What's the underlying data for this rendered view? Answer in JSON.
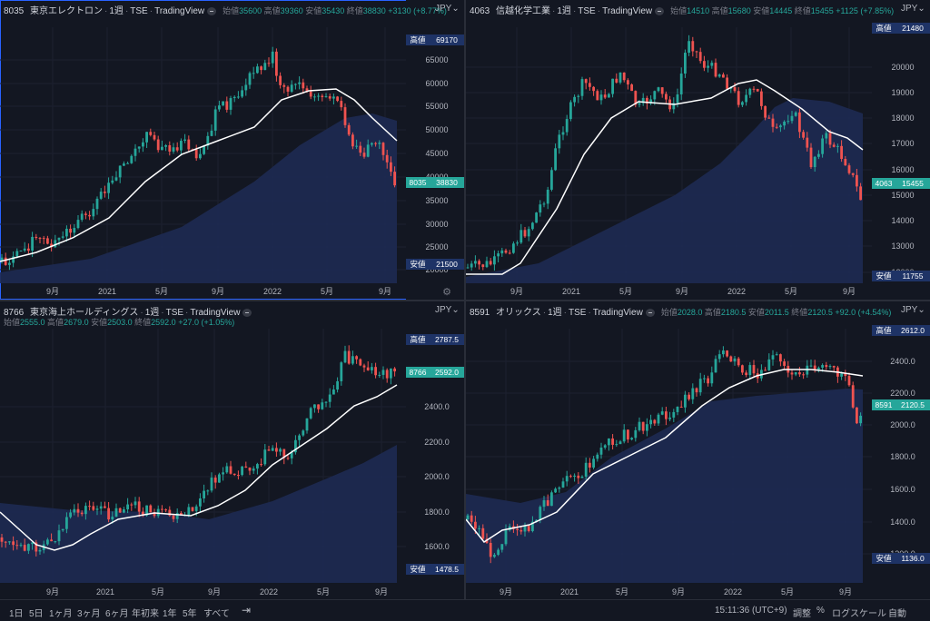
{
  "colors": {
    "up": "#26a69a",
    "down": "#ef5350",
    "ma": "#ffffff",
    "area": "#1e2a52",
    "bg": "#131722",
    "label_blue": "#1e3366",
    "label_green": "#26a69a"
  },
  "panes": [
    {
      "code": "8035",
      "name": "東京エレクトロン",
      "interval": "1週",
      "exchange": "TSE",
      "source": "TradingView",
      "ohlc": {
        "open_label": "始値",
        "open": "35600",
        "high_label": "高値",
        "high": "39360",
        "low_label": "安値",
        "low": "35430",
        "close_label": "終値",
        "close": "38830",
        "change": "+3130 (+8.77%)"
      },
      "currency": "JPY",
      "price_ticks": [
        "65000",
        "60000",
        "55000",
        "50000",
        "45000",
        "40000",
        "35000",
        "30000",
        "25000",
        "20000"
      ],
      "high_tag": {
        "label": "高値",
        "value": "69170"
      },
      "last_tag": {
        "label": "8035",
        "value": "38830"
      },
      "low_tag": {
        "label": "安値",
        "value": "21500"
      },
      "time_ticks": [
        "9月",
        "2021",
        "5月",
        "9月",
        "2022",
        "5月",
        "9月"
      ],
      "settings_icon": "gear-icon"
    },
    {
      "code": "4063",
      "name": "信越化学工業",
      "interval": "1週",
      "exchange": "TSE",
      "source": "TradingView",
      "ohlc": {
        "open_label": "始値",
        "open": "14510",
        "high_label": "高値",
        "high": "15680",
        "low_label": "安値",
        "low": "14445",
        "close_label": "終値",
        "close": "15455",
        "change": "+1125 (+7.85%)"
      },
      "currency": "JPY",
      "price_ticks": [
        "20000",
        "19000",
        "18000",
        "17000",
        "16000",
        "15000",
        "14000",
        "13000",
        "12000"
      ],
      "high_tag": {
        "label": "高値",
        "value": "21480"
      },
      "last_tag": {
        "label": "4063",
        "value": "15455"
      },
      "low_tag": {
        "label": "安値",
        "value": "11755"
      },
      "time_ticks": [
        "9月",
        "2021",
        "5月",
        "9月",
        "2022",
        "5月",
        "9月"
      ]
    },
    {
      "code": "8766",
      "name": "東京海上ホールディングス",
      "interval": "1週",
      "exchange": "TSE",
      "source": "TradingView",
      "ohlc": {
        "open_label": "始値",
        "open": "2555.0",
        "high_label": "高値",
        "high": "2679.0",
        "low_label": "安値",
        "low": "2503.0",
        "close_label": "終値",
        "close": "2592.0",
        "change": "+27.0 (+1.05%)"
      },
      "currency": "JPY",
      "price_ticks": [
        "2400.0",
        "2200.0",
        "2000.0",
        "1800.0",
        "1600.0"
      ],
      "high_tag": {
        "label": "高値",
        "value": "2787.5"
      },
      "last_tag": {
        "label": "8766",
        "value": "2592.0"
      },
      "low_tag": {
        "label": "安値",
        "value": "1478.5"
      },
      "time_ticks": [
        "9月",
        "2021",
        "5月",
        "9月",
        "2022",
        "5月",
        "9月"
      ]
    },
    {
      "code": "8591",
      "name": "オリックス",
      "interval": "1週",
      "exchange": "TSE",
      "source": "TradingView",
      "ohlc": {
        "open_label": "始値",
        "open": "2028.0",
        "high_label": "高値",
        "high": "2180.5",
        "low_label": "安値",
        "low": "2011.5",
        "close_label": "終値",
        "close": "2120.5",
        "change": "+92.0 (+4.54%)"
      },
      "currency": "JPY",
      "price_ticks": [
        "2400.0",
        "2200.0",
        "2000.0",
        "1800.0",
        "1600.0",
        "1400.0",
        "1200.0"
      ],
      "high_tag": {
        "label": "高値",
        "value": "2612.0"
      },
      "last_tag": {
        "label": "8591",
        "value": "2120.5"
      },
      "low_tag": {
        "label": "安値",
        "value": "1136.0"
      },
      "time_ticks": [
        "9月",
        "2021",
        "5月",
        "9月",
        "2022",
        "5月",
        "9月"
      ]
    }
  ],
  "bottom": {
    "ranges": [
      "1日",
      "5日",
      "1ヶ月",
      "3ヶ月",
      "6ヶ月",
      "年初来",
      "1年",
      "5年",
      "すべて"
    ],
    "goto_icon": "goto-date-icon",
    "time": "15:11:36 (UTC+9)",
    "adjust": "調整",
    "percent": "%",
    "log": "ログスケール",
    "auto": "自動"
  }
}
